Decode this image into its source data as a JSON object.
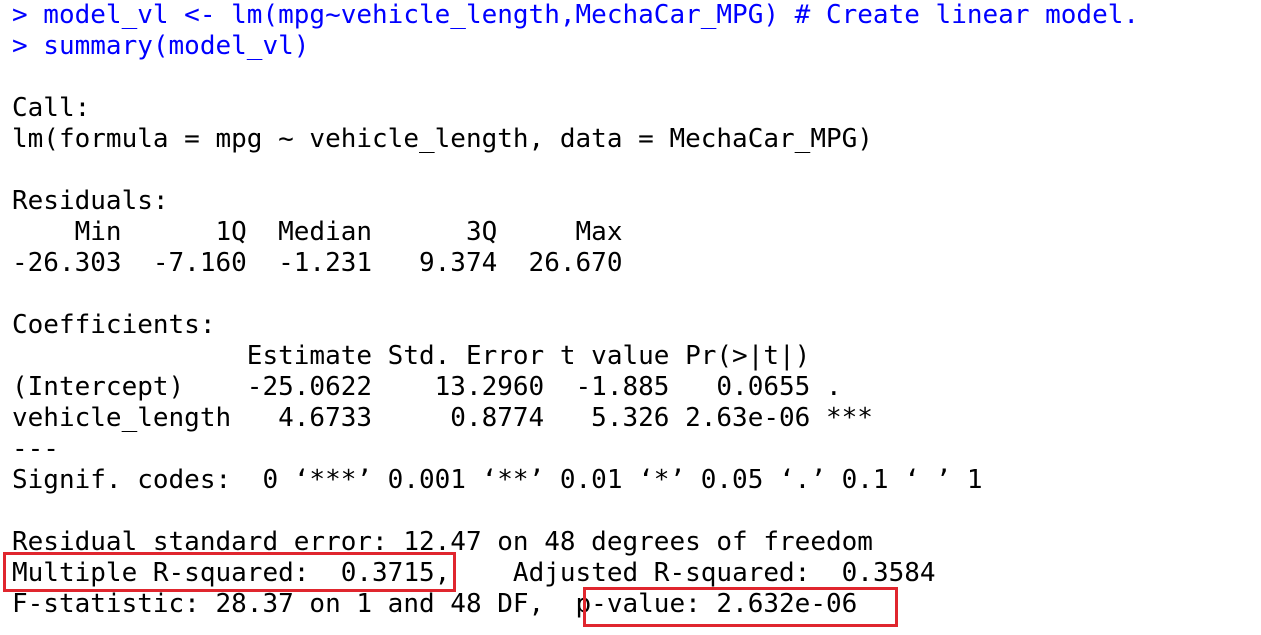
{
  "colors": {
    "command": "#0000ff",
    "output": "#000000",
    "highlight": "#e0262e",
    "background": "#ffffff"
  },
  "commands": [
    "> model_vl <- lm(mpg~vehicle_length,MechaCar_MPG) # Create linear model.",
    "> summary(model_vl)"
  ],
  "output": {
    "call_header": "Call:",
    "call_formula": "lm(formula = mpg ~ vehicle_length, data = MechaCar_MPG)",
    "residuals_header": "Residuals:",
    "residuals_labels": "    Min      1Q  Median      3Q     Max ",
    "residuals_values": "-26.303  -7.160  -1.231   9.374  26.670 ",
    "coefficients_header": "Coefficients:",
    "coef_col_header": "               Estimate Std. Error t value Pr(>|t|)    ",
    "coef_row_intercept": "(Intercept)    -25.0622    13.2960  -1.885   0.0655 .  ",
    "coef_row_vehicle_length": "vehicle_length   4.6733     0.8774   5.326 2.63e-06 ***",
    "divider": "---",
    "signif_codes": "Signif. codes:  0 ‘***’ 0.001 ‘**’ 0.01 ‘*’ 0.05 ‘.’ 0.1 ‘ ’ 1",
    "rse_line": "Residual standard error: 12.47 on 48 degrees of freedom",
    "multiple_r_squared": "Multiple R-squared:  0.3715",
    "adjusted_r_squared_gap": ",\t",
    "adjusted_r_squared": "Adjusted R-squared:  0.3584 ",
    "f_statistic": "F-statistic: 28.37 on 1 and 48 DF,  ",
    "p_value": "p-value: 2.632e-06"
  }
}
